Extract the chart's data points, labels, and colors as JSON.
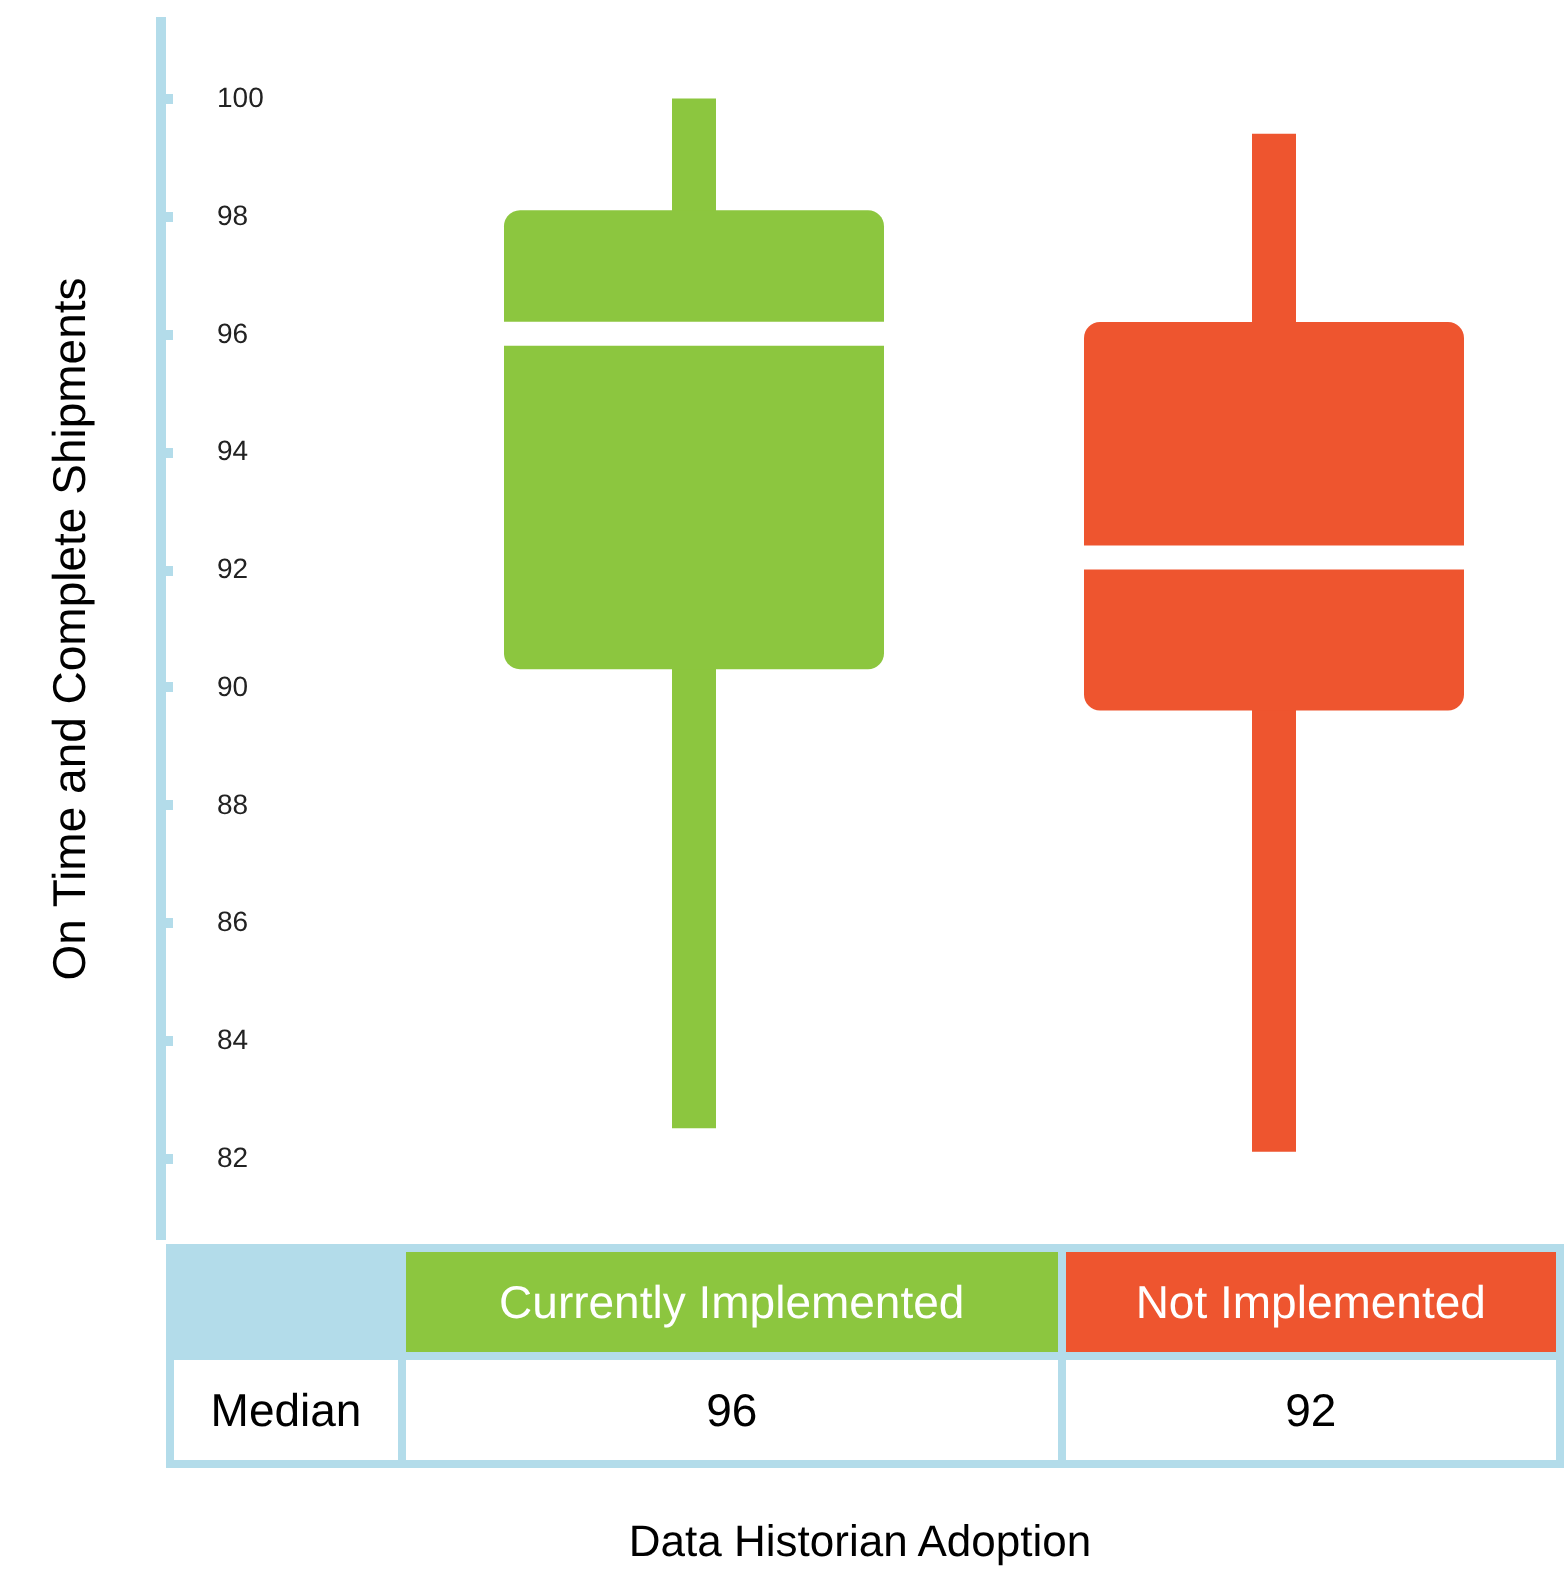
{
  "chart_data": {
    "type": "box",
    "ylabel": "On Time and Complete Shipments",
    "xlabel": "Data Historian Adoption",
    "categories": [
      "Currently Implemented",
      "Not Implemented"
    ],
    "colors": [
      "#8cc63f",
      "#ee552f"
    ],
    "boxes": [
      {
        "low": 82.5,
        "q1": 90.3,
        "median": 96.0,
        "q3": 98.1,
        "high": 100
      },
      {
        "low": 82.1,
        "q1": 89.6,
        "median": 92.2,
        "q3": 96.2,
        "high": 99.4
      }
    ],
    "ylim": [
      80.6,
      101.4
    ],
    "yticks": [
      82,
      84,
      86,
      88,
      90,
      92,
      94,
      96,
      98,
      100
    ],
    "annotations": [
      "Median",
      "96",
      "92"
    ]
  }
}
